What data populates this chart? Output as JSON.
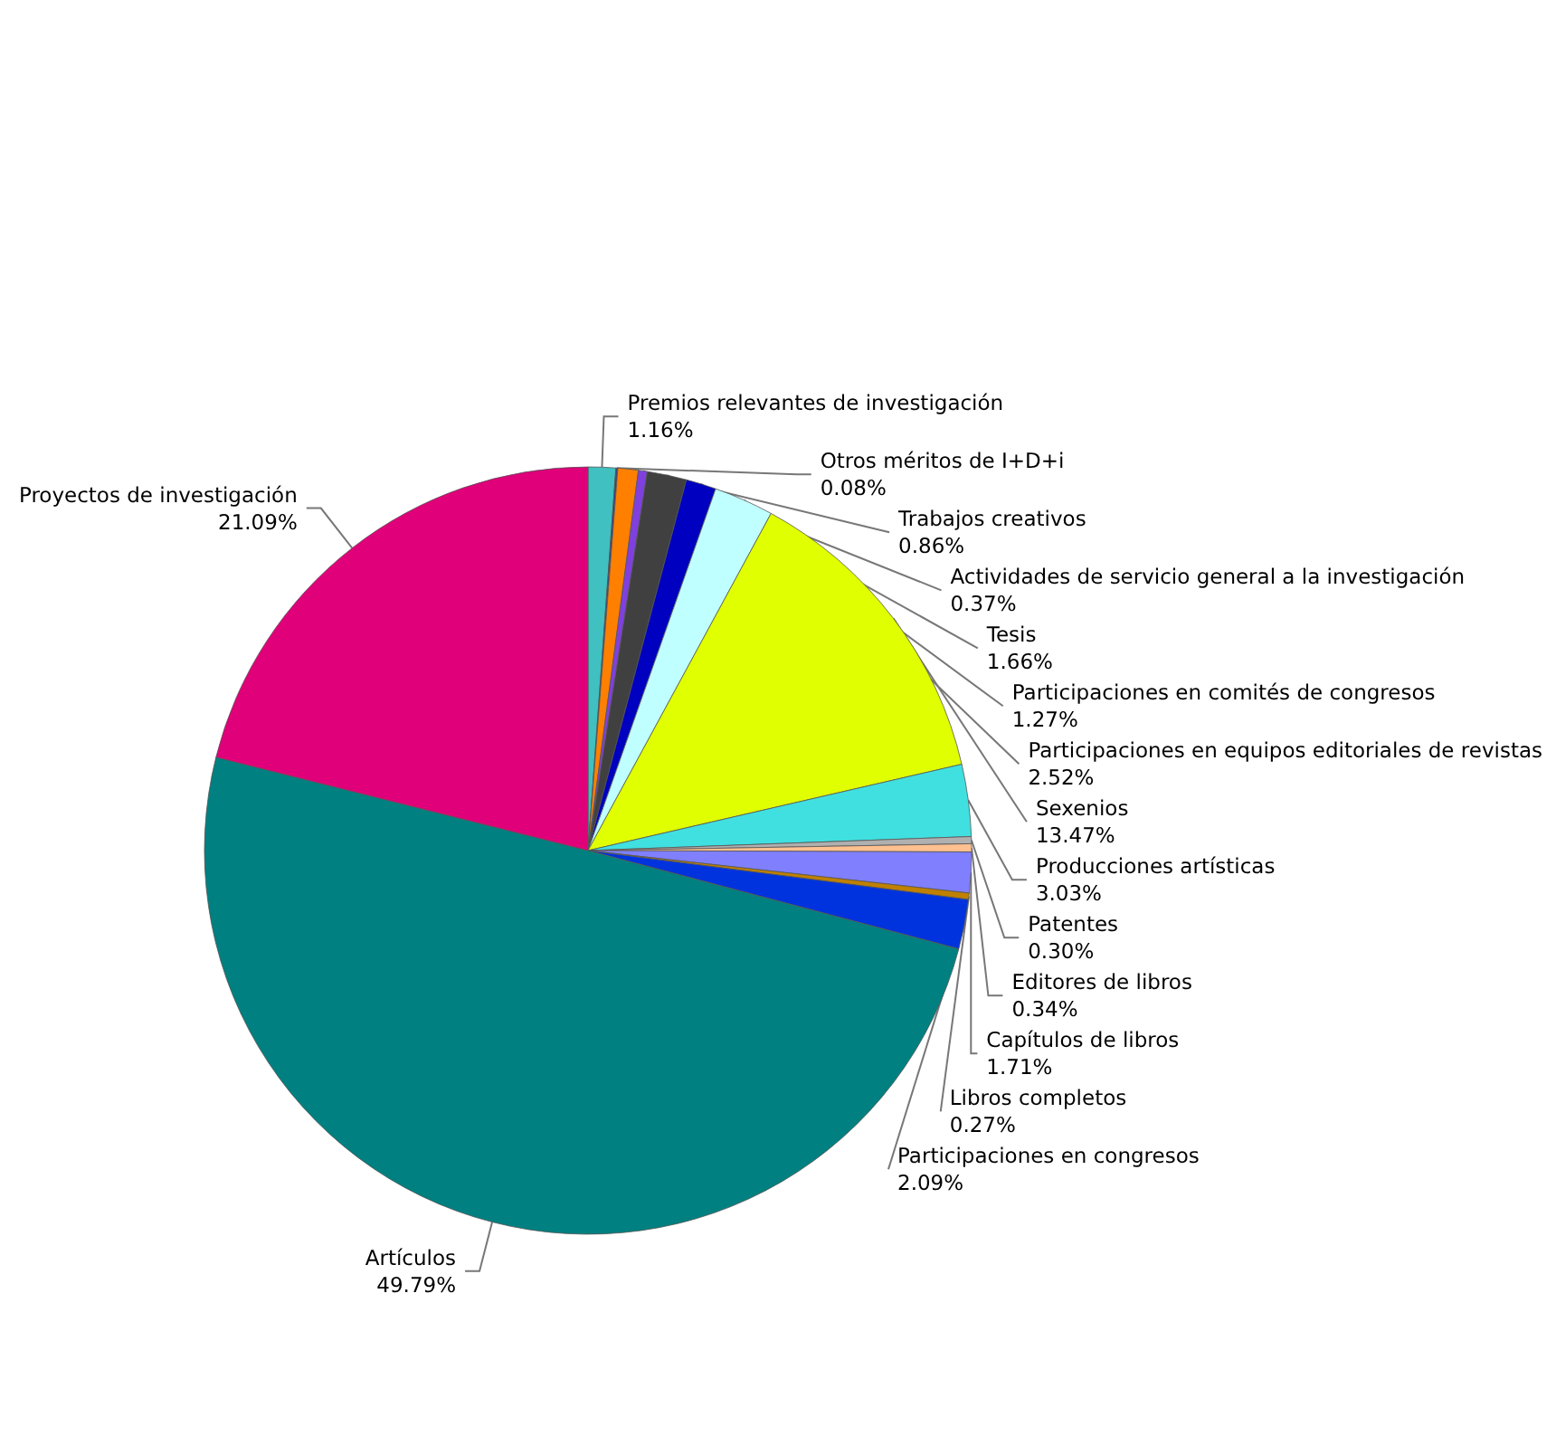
{
  "chart_data": {
    "type": "pie",
    "categories": [
      "Premios relevantes de investigación",
      "Otros méritos de I+D+i",
      "Trabajos creativos",
      "Actividades de servicio general a la investigación",
      "Tesis",
      "Participaciones en comités de congresos",
      "Participaciones en equipos editoriales de revistas",
      "Sexenios",
      "Producciones artísticas",
      "Patentes",
      "Editores de libros",
      "Capítulos de libros",
      "Libros completos",
      "Participaciones en congresos",
      "Artículos",
      "Proyectos de investigación"
    ],
    "values": [
      1.16,
      0.08,
      0.86,
      0.37,
      1.66,
      1.27,
      2.52,
      13.47,
      3.03,
      0.3,
      0.34,
      1.71,
      0.27,
      2.09,
      49.79,
      21.09
    ],
    "value_labels": [
      "1.16%",
      "0.08%",
      "0.86%",
      "0.37%",
      "1.66%",
      "1.27%",
      "2.52%",
      "13.47%",
      "3.03%",
      "0.30%",
      "0.34%",
      "1.71%",
      "0.27%",
      "2.09%",
      "49.79%",
      "21.09%"
    ],
    "colors": [
      "#40c0c0",
      "#404080",
      "#ff8000",
      "#8040e0",
      "#404040",
      "#0000c0",
      "#c0ffff",
      "#e0ff00",
      "#40e0e0",
      "#b0b0b0",
      "#ffc090",
      "#8080ff",
      "#c08000",
      "#0033dd",
      "#008080",
      "#e0007a"
    ],
    "legend": false
  }
}
